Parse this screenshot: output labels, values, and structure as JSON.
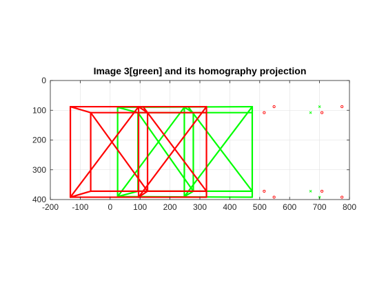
{
  "chart_data": {
    "type": "line",
    "title": "Image 3[green] and its homography projection",
    "xlabel": "",
    "ylabel": "",
    "xlim": [
      -200,
      800
    ],
    "ylim": [
      0,
      400
    ],
    "y_reversed": true,
    "grid": true,
    "legend": "none",
    "xticks": [
      -200,
      -100,
      0,
      100,
      200,
      300,
      400,
      500,
      600,
      700,
      800
    ],
    "yticks": [
      0,
      100,
      200,
      300,
      400
    ],
    "colors": {
      "green": "#00ff00",
      "red": "#ff0000"
    },
    "series": [
      {
        "color": "#00ff00",
        "style": "line",
        "segments": [
          [
            [
              25,
              90
            ],
            [
              475,
              88
            ]
          ],
          [
            [
              25,
              390
            ],
            [
              475,
              392
            ]
          ],
          [
            [
              25,
              90
            ],
            [
              25,
              390
            ]
          ],
          [
            [
              475,
              88
            ],
            [
              475,
              392
            ]
          ],
          [
            [
              93,
              108
            ],
            [
              475,
              108
            ]
          ],
          [
            [
              93,
              372
            ],
            [
              475,
              372
            ]
          ],
          [
            [
              93,
              108
            ],
            [
              93,
              372
            ]
          ],
          [
            [
              25,
              90
            ],
            [
              93,
              108
            ]
          ],
          [
            [
              25,
              390
            ],
            [
              93,
              372
            ]
          ],
          [
            [
              248,
              90
            ],
            [
              248,
              390
            ]
          ],
          [
            [
              278,
              108
            ],
            [
              278,
              372
            ]
          ],
          [
            [
              248,
              90
            ],
            [
              278,
              108
            ]
          ],
          [
            [
              248,
              390
            ],
            [
              278,
              372
            ]
          ],
          [
            [
              25,
              390
            ],
            [
              248,
              90
            ]
          ],
          [
            [
              93,
              108
            ],
            [
              278,
              372
            ]
          ],
          [
            [
              475,
              88
            ],
            [
              248,
              390
            ]
          ],
          [
            [
              262,
              90
            ],
            [
              475,
              372
            ]
          ]
        ]
      },
      {
        "color": "#ff0000",
        "style": "line",
        "segments": [
          [
            [
              -133,
              88
            ],
            [
              322,
              88
            ]
          ],
          [
            [
              -133,
              392
            ],
            [
              322,
              392
            ]
          ],
          [
            [
              -133,
              88
            ],
            [
              -133,
              392
            ]
          ],
          [
            [
              322,
              88
            ],
            [
              322,
              392
            ]
          ],
          [
            [
              -65,
              108
            ],
            [
              322,
              108
            ]
          ],
          [
            [
              -65,
              372
            ],
            [
              322,
              372
            ]
          ],
          [
            [
              -65,
              108
            ],
            [
              -65,
              372
            ]
          ],
          [
            [
              -133,
              88
            ],
            [
              -65,
              108
            ]
          ],
          [
            [
              -133,
              392
            ],
            [
              -65,
              372
            ]
          ],
          [
            [
              95,
              88
            ],
            [
              95,
              392
            ]
          ],
          [
            [
              125,
              108
            ],
            [
              125,
              372
            ]
          ],
          [
            [
              95,
              88
            ],
            [
              125,
              108
            ]
          ],
          [
            [
              95,
              392
            ],
            [
              125,
              372
            ]
          ],
          [
            [
              -133,
              392
            ],
            [
              95,
              88
            ]
          ],
          [
            [
              -65,
              108
            ],
            [
              125,
              372
            ]
          ],
          [
            [
              322,
              88
            ],
            [
              95,
              392
            ]
          ],
          [
            [
              110,
              88
            ],
            [
              322,
              372
            ]
          ]
        ]
      },
      {
        "color": "#00ff00",
        "style": "x-marker",
        "points": [
          [
            700,
            88
          ],
          [
            670,
            108
          ],
          [
            670,
            372
          ],
          [
            700,
            392
          ]
        ]
      },
      {
        "color": "#ff0000",
        "style": "o-marker",
        "points": [
          [
            548,
            88
          ],
          [
            515,
            108
          ],
          [
            515,
            372
          ],
          [
            548,
            392
          ],
          [
            775,
            88
          ],
          [
            708,
            108
          ],
          [
            708,
            372
          ],
          [
            775,
            392
          ]
        ]
      }
    ]
  }
}
